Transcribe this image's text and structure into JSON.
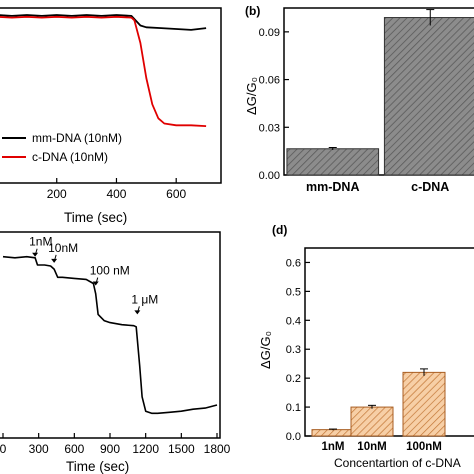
{
  "figure": {
    "panels": [
      {
        "panel_label": "",
        "type": "line",
        "xlabel": "Time (sec)",
        "ylabel": "",
        "xlim": [
          0,
          750
        ],
        "ylim": [
          0,
          1.0
        ],
        "x_ticks": [
          200,
          400,
          600
        ],
        "x_tick_labels": [
          "200",
          "400",
          "600"
        ],
        "legend": [
          {
            "label": "mm-DNA (10nM)",
            "color": "#000000"
          },
          {
            "label": "c-DNA (10nM)",
            "color": "#e00000"
          }
        ],
        "series": [
          {
            "name": "mm-DNA (10nM)",
            "color": "#000000",
            "x": [
              0,
              50,
              100,
              150,
              200,
              250,
              300,
              350,
              400,
              450,
              480,
              500,
              550,
              600,
              650,
              700
            ],
            "y": [
              0.96,
              0.955,
              0.96,
              0.955,
              0.96,
              0.955,
              0.96,
              0.955,
              0.96,
              0.955,
              0.9,
              0.89,
              0.885,
              0.88,
              0.875,
              0.885
            ]
          },
          {
            "name": "c-DNA (10nM)",
            "color": "#e00000",
            "x": [
              0,
              50,
              100,
              150,
              200,
              250,
              300,
              350,
              400,
              450,
              460,
              480,
              500,
              520,
              540,
              560,
              600,
              650,
              700
            ],
            "y": [
              0.95,
              0.945,
              0.95,
              0.945,
              0.95,
              0.945,
              0.95,
              0.945,
              0.95,
              0.945,
              0.93,
              0.8,
              0.6,
              0.45,
              0.37,
              0.34,
              0.33,
              0.33,
              0.325
            ]
          }
        ]
      },
      {
        "panel_label": "(b)",
        "type": "bar",
        "xlabel": "",
        "ylabel": "ΔG/G₀",
        "ylim": [
          0,
          0.105
        ],
        "y_ticks": [
          0.0,
          0.03,
          0.06,
          0.09
        ],
        "y_tick_labels": [
          "0.00",
          "0.03",
          "0.06",
          "0.09"
        ],
        "categories": [
          "mm-DNA",
          "c-DNA"
        ],
        "values": [
          0.0165,
          0.099
        ],
        "errors": [
          0.0008,
          0.005
        ],
        "bar_color": "#8a8a8a"
      },
      {
        "panel_label": "",
        "type": "line",
        "xlabel": "Time (sec)",
        "ylabel": "",
        "xlim": [
          0,
          1800
        ],
        "ylim": [
          0,
          1.0
        ],
        "x_ticks": [
          0,
          300,
          600,
          900,
          1200,
          1500,
          1800
        ],
        "x_tick_labels": [
          "0",
          "300",
          "600",
          "900",
          "1200",
          "1500",
          "1800"
        ],
        "annotations": [
          {
            "text": "1nM",
            "x": 270,
            "y": 0.88
          },
          {
            "text": "10nM",
            "x": 430,
            "y": 0.85
          },
          {
            "text": "100 nM",
            "x": 780,
            "y": 0.74
          },
          {
            "text": "1 μM",
            "x": 1130,
            "y": 0.6
          }
        ],
        "series": [
          {
            "name": "",
            "color": "#000000",
            "x": [
              0,
              100,
              200,
              270,
              290,
              350,
              400,
              430,
              460,
              500,
              600,
              700,
              760,
              780,
              800,
              850,
              900,
              1000,
              1100,
              1120,
              1150,
              1170,
              1200,
              1250,
              1300,
              1400,
              1500,
              1600,
              1700,
              1800
            ],
            "y": [
              0.88,
              0.875,
              0.88,
              0.875,
              0.84,
              0.84,
              0.835,
              0.82,
              0.78,
              0.78,
              0.775,
              0.77,
              0.75,
              0.7,
              0.6,
              0.57,
              0.56,
              0.55,
              0.545,
              0.54,
              0.35,
              0.2,
              0.13,
              0.12,
              0.12,
              0.125,
              0.13,
              0.14,
              0.145,
              0.16
            ]
          }
        ]
      },
      {
        "panel_label": "(d)",
        "type": "bar",
        "xlabel": "Concentartion of c-DNA",
        "ylabel": "ΔG/G₀",
        "ylim": [
          0,
          0.65
        ],
        "y_ticks": [
          0.0,
          0.1,
          0.2,
          0.3,
          0.4,
          0.5,
          0.6
        ],
        "y_tick_labels": [
          "0.0",
          "0.1",
          "0.2",
          "0.3",
          "0.4",
          "0.5",
          "0.6"
        ],
        "categories": [
          "1nM",
          "10nM",
          "100nM"
        ],
        "values": [
          0.022,
          0.1,
          0.22
        ],
        "errors": [
          0.002,
          0.006,
          0.012
        ],
        "bar_color": "#f5c49a",
        "hatch_color": "#c97a3a"
      }
    ]
  }
}
